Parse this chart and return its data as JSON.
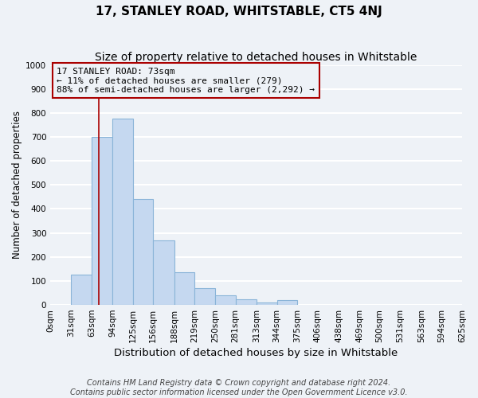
{
  "title": "17, STANLEY ROAD, WHITSTABLE, CT5 4NJ",
  "subtitle": "Size of property relative to detached houses in Whitstable",
  "xlabel": "Distribution of detached houses by size in Whitstable",
  "ylabel": "Number of detached properties",
  "bin_edges": [
    0,
    31,
    63,
    94,
    125,
    156,
    188,
    219,
    250,
    281,
    313,
    344,
    375,
    406,
    438,
    469,
    500,
    531,
    563,
    594,
    625
  ],
  "bar_heights": [
    0,
    125,
    700,
    775,
    440,
    270,
    135,
    70,
    40,
    25,
    10,
    20,
    0,
    0,
    0,
    0,
    0,
    0,
    0,
    0
  ],
  "bar_color": "#c5d8f0",
  "bar_edge_color": "#8ab4d8",
  "property_size": 73,
  "red_line_color": "#aa0000",
  "annotation_text": "17 STANLEY ROAD: 73sqm\n← 11% of detached houses are smaller (279)\n88% of semi-detached houses are larger (2,292) →",
  "annotation_box_color": "#aa0000",
  "ylim": [
    0,
    1000
  ],
  "yticks": [
    0,
    100,
    200,
    300,
    400,
    500,
    600,
    700,
    800,
    900,
    1000
  ],
  "footer_line1": "Contains HM Land Registry data © Crown copyright and database right 2024.",
  "footer_line2": "Contains public sector information licensed under the Open Government Licence v3.0.",
  "background_color": "#eef2f7",
  "grid_color": "#ffffff",
  "title_fontsize": 11,
  "subtitle_fontsize": 10,
  "xlabel_fontsize": 9.5,
  "ylabel_fontsize": 8.5,
  "tick_fontsize": 7.5,
  "annotation_fontsize": 8,
  "footer_fontsize": 7
}
